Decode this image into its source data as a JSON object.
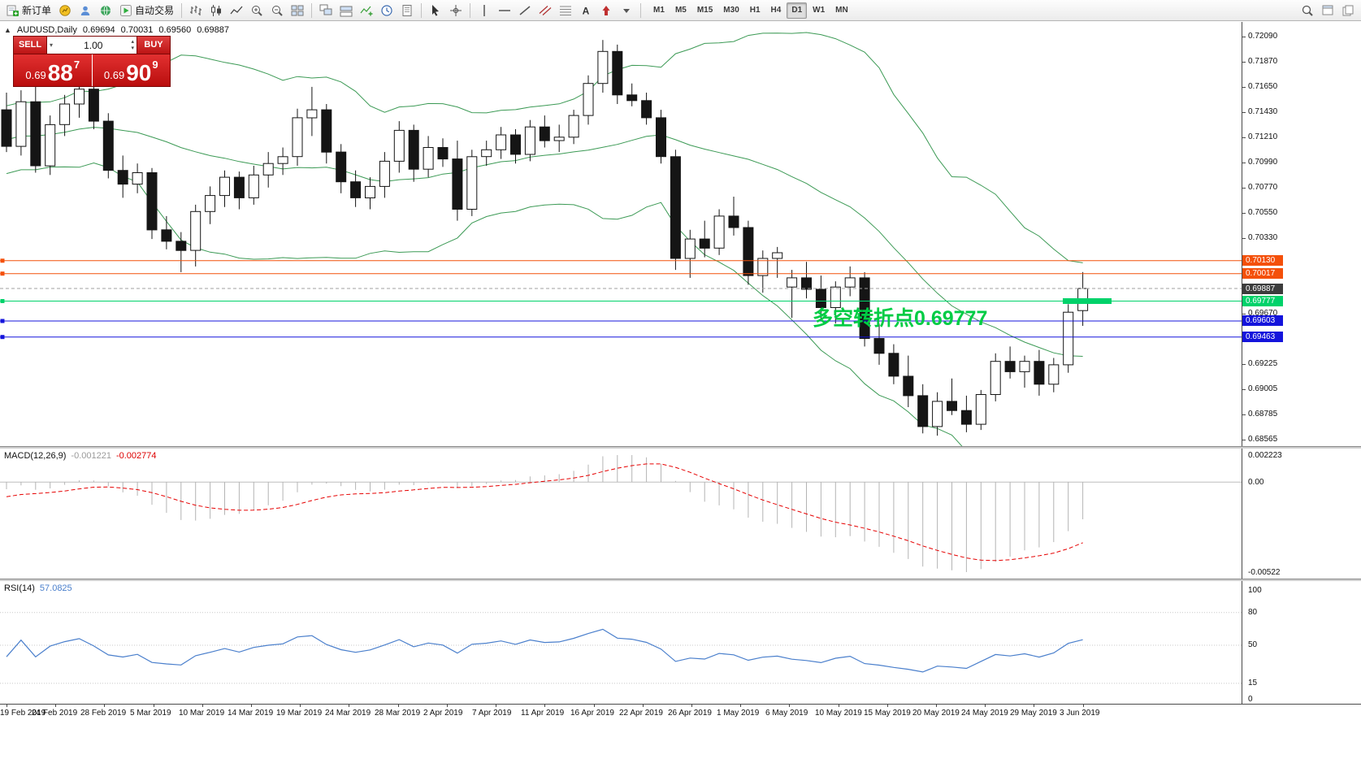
{
  "toolbar": {
    "buttons": [
      {
        "icon": "new-order-icon",
        "label": "新订单",
        "name": "new-order-button"
      },
      {
        "icon": "chart-window-icon",
        "name": "new-chart-button"
      },
      {
        "icon": "profile-icon",
        "name": "profile-button"
      },
      {
        "icon": "community-icon",
        "name": "community-button"
      },
      {
        "icon": "auto-trading-icon",
        "label": "自动交易",
        "name": "auto-trading-button"
      },
      {
        "sep": true
      },
      {
        "icon": "bar-chart-icon",
        "name": "bar-chart-button"
      },
      {
        "icon": "candlestick-chart-icon",
        "name": "candlestick-chart-button"
      },
      {
        "icon": "line-chart-icon",
        "name": "line-chart-button"
      },
      {
        "icon": "zoom-in-icon",
        "name": "zoom-in-button"
      },
      {
        "icon": "zoom-out-icon",
        "name": "zoom-out-button"
      },
      {
        "icon": "tile-windows-icon",
        "name": "tile-windows-button"
      },
      {
        "sep": true
      },
      {
        "icon": "arrange-windows-icon",
        "name": "arrange-windows-button"
      },
      {
        "icon": "cascade-windows-icon",
        "name": "cascade-windows-button"
      },
      {
        "icon": "indicators-icon",
        "name": "indicators-button"
      },
      {
        "icon": "periods-icon",
        "name": "periods-button"
      },
      {
        "icon": "templates-icon",
        "name": "templates-button"
      },
      {
        "sep": true
      },
      {
        "icon": "cursor-icon",
        "name": "cursor-button"
      },
      {
        "icon": "crosshair-icon",
        "name": "crosshair-button"
      },
      {
        "sep": true
      },
      {
        "icon": "vertical-line-icon",
        "name": "vertical-line-button"
      },
      {
        "icon": "horizontal-line-icon",
        "name": "horizontal-line-button"
      },
      {
        "icon": "trendline-icon",
        "name": "trendline-button"
      },
      {
        "icon": "channel-icon",
        "name": "equidistant-channel-button"
      },
      {
        "icon": "fibonacci-icon",
        "name": "fibonacci-button"
      },
      {
        "icon": "text-icon",
        "name": "text-button"
      },
      {
        "icon": "arrow-marker-icon",
        "name": "arrow-marker-button"
      },
      {
        "icon": "dropdown-icon",
        "name": "shapes-dropdown"
      },
      {
        "sep": true
      }
    ],
    "timeframes": [
      {
        "label": "M1"
      },
      {
        "label": "M5"
      },
      {
        "label": "M15"
      },
      {
        "label": "M30"
      },
      {
        "label": "H1"
      },
      {
        "label": "H4"
      },
      {
        "label": "D1",
        "active": true
      },
      {
        "label": "W1"
      },
      {
        "label": "MN"
      }
    ],
    "right_buttons": [
      {
        "icon": "search-icon",
        "name": "search-button"
      },
      {
        "icon": "new-window-icon",
        "name": "new-window-button"
      },
      {
        "icon": "pages-icon",
        "name": "pages-button"
      }
    ]
  },
  "window": {
    "symbol_title": "AUDUSD,Daily",
    "ohlc": {
      "open": "0.69694",
      "high": "0.70031",
      "low": "0.69560",
      "close": "0.69887"
    }
  },
  "trade_panel": {
    "sell_label": "SELL",
    "buy_label": "BUY",
    "volume": "1.00",
    "sell_price": {
      "prefix": "0.69",
      "big": "88",
      "sup": "7"
    },
    "buy_price": {
      "prefix": "0.69",
      "big": "90",
      "sup": "9"
    }
  },
  "annotation": {
    "text": "多空转折点0.69777",
    "color": "#00cc44"
  },
  "indicators": {
    "macd": {
      "title": "MACD(12,26,9)",
      "main_value": "-0.001221",
      "signal_value": "-0.002774",
      "scale": {
        "top": "0.002223",
        "zero": "0.00",
        "bottom": "-0.00522"
      },
      "colors": {
        "histogram": "#b4b4b4",
        "signal": "#e60000"
      }
    },
    "rsi": {
      "title": "RSI(14)",
      "value": "57.0825",
      "levels": [
        100,
        80,
        50,
        15,
        0
      ],
      "color": "#4a7fcc"
    }
  },
  "chart_data": {
    "type": "candlestick",
    "symbol": "AUDUSD",
    "timeframe": "Daily",
    "ohlc": [
      [
        0.7145,
        0.716,
        0.7108,
        0.7113
      ],
      [
        0.7113,
        0.7162,
        0.7105,
        0.7152
      ],
      [
        0.7152,
        0.7168,
        0.709,
        0.7096
      ],
      [
        0.7096,
        0.714,
        0.7088,
        0.7132
      ],
      [
        0.7132,
        0.7158,
        0.7122,
        0.715
      ],
      [
        0.715,
        0.7168,
        0.7138,
        0.7163
      ],
      [
        0.7163,
        0.717,
        0.7128,
        0.7135
      ],
      [
        0.7135,
        0.7142,
        0.7085,
        0.7092
      ],
      [
        0.7092,
        0.7105,
        0.7068,
        0.708
      ],
      [
        0.708,
        0.7098,
        0.7072,
        0.709
      ],
      [
        0.709,
        0.7094,
        0.7032,
        0.704
      ],
      [
        0.704,
        0.7052,
        0.7023,
        0.703
      ],
      [
        0.703,
        0.7038,
        0.7003,
        0.7022
      ],
      [
        0.7022,
        0.7062,
        0.7008,
        0.7056
      ],
      [
        0.7056,
        0.7078,
        0.7045,
        0.707
      ],
      [
        0.707,
        0.7092,
        0.706,
        0.7086
      ],
      [
        0.7086,
        0.7091,
        0.7058,
        0.7068
      ],
      [
        0.7068,
        0.7096,
        0.7062,
        0.7088
      ],
      [
        0.7088,
        0.7108,
        0.7077,
        0.7098
      ],
      [
        0.7098,
        0.7112,
        0.7088,
        0.7104
      ],
      [
        0.7104,
        0.7146,
        0.7096,
        0.7138
      ],
      [
        0.7138,
        0.7165,
        0.7122,
        0.7145
      ],
      [
        0.7145,
        0.715,
        0.7098,
        0.7108
      ],
      [
        0.7108,
        0.7115,
        0.7072,
        0.7082
      ],
      [
        0.7082,
        0.7092,
        0.706,
        0.7068
      ],
      [
        0.7068,
        0.7086,
        0.7058,
        0.7078
      ],
      [
        0.7078,
        0.7108,
        0.7068,
        0.71
      ],
      [
        0.71,
        0.7135,
        0.709,
        0.7127
      ],
      [
        0.7127,
        0.7132,
        0.7082,
        0.7093
      ],
      [
        0.7093,
        0.7122,
        0.7086,
        0.7112
      ],
      [
        0.7112,
        0.712,
        0.7095,
        0.7102
      ],
      [
        0.7102,
        0.7118,
        0.7048,
        0.7058
      ],
      [
        0.7058,
        0.711,
        0.7052,
        0.7104
      ],
      [
        0.7104,
        0.7118,
        0.7096,
        0.711
      ],
      [
        0.711,
        0.713,
        0.7102,
        0.7123
      ],
      [
        0.7123,
        0.7128,
        0.7098,
        0.7106
      ],
      [
        0.7106,
        0.7136,
        0.71,
        0.713
      ],
      [
        0.713,
        0.714,
        0.7112,
        0.7118
      ],
      [
        0.7118,
        0.7132,
        0.7108,
        0.7121
      ],
      [
        0.7121,
        0.7145,
        0.7115,
        0.714
      ],
      [
        0.714,
        0.7175,
        0.7132,
        0.7168
      ],
      [
        0.7168,
        0.7206,
        0.716,
        0.7196
      ],
      [
        0.7196,
        0.7202,
        0.715,
        0.7158
      ],
      [
        0.7158,
        0.7168,
        0.7148,
        0.7153
      ],
      [
        0.7153,
        0.716,
        0.7132,
        0.7138
      ],
      [
        0.7138,
        0.7145,
        0.7098,
        0.7104
      ],
      [
        0.7104,
        0.711,
        0.7005,
        0.7015
      ],
      [
        0.7015,
        0.704,
        0.6998,
        0.7032
      ],
      [
        0.7032,
        0.7048,
        0.7016,
        0.7024
      ],
      [
        0.7024,
        0.7058,
        0.7018,
        0.7052
      ],
      [
        0.7052,
        0.7069,
        0.7035,
        0.7042
      ],
      [
        0.7042,
        0.7048,
        0.6992,
        0.7
      ],
      [
        0.7,
        0.7022,
        0.6985,
        0.7015
      ],
      [
        0.7015,
        0.7025,
        0.6998,
        0.702
      ],
      [
        0.699,
        0.7005,
        0.6963,
        0.6998
      ],
      [
        0.6998,
        0.7012,
        0.698,
        0.6988
      ],
      [
        0.6988,
        0.7,
        0.6962,
        0.6972
      ],
      [
        0.6972,
        0.6995,
        0.6958,
        0.699
      ],
      [
        0.699,
        0.7008,
        0.6982,
        0.6998
      ],
      [
        0.6998,
        0.7003,
        0.6938,
        0.6945
      ],
      [
        0.6945,
        0.6958,
        0.6922,
        0.6932
      ],
      [
        0.6932,
        0.694,
        0.6905,
        0.6912
      ],
      [
        0.6912,
        0.693,
        0.6885,
        0.6895
      ],
      [
        0.6895,
        0.6905,
        0.6862,
        0.6868
      ],
      [
        0.6868,
        0.6898,
        0.686,
        0.689
      ],
      [
        0.689,
        0.691,
        0.6878,
        0.6882
      ],
      [
        0.6882,
        0.6895,
        0.6863,
        0.687
      ],
      [
        0.687,
        0.69,
        0.6865,
        0.6896
      ],
      [
        0.6896,
        0.6932,
        0.689,
        0.6925
      ],
      [
        0.6925,
        0.6938,
        0.691,
        0.6916
      ],
      [
        0.6916,
        0.693,
        0.6902,
        0.6925
      ],
      [
        0.6925,
        0.6935,
        0.6895,
        0.6905
      ],
      [
        0.6905,
        0.6928,
        0.6898,
        0.6922
      ],
      [
        0.6922,
        0.6975,
        0.6915,
        0.6968
      ],
      [
        0.69694,
        0.70031,
        0.6956,
        0.69887
      ]
    ],
    "x_labels": [
      "19 Feb 2019",
      "24 Feb 2019",
      "28 Feb 2019",
      "5 Mar 2019",
      "10 Mar 2019",
      "14 Mar 2019",
      "19 Mar 2019",
      "24 Mar 2019",
      "28 Mar 2019",
      "2 Apr 2019",
      "7 Apr 2019",
      "11 Apr 2019",
      "16 Apr 2019",
      "22 Apr 2019",
      "26 Apr 2019",
      "1 May 2019",
      "6 May 2019",
      "10 May 2019",
      "15 May 2019",
      "20 May 2019",
      "24 May 2019",
      "29 May 2019",
      "3 Jun 2019"
    ],
    "y_ticks": [
      {
        "label": "0.72090",
        "price": 0.7209
      },
      {
        "label": "0.71870",
        "price": 0.7187
      },
      {
        "label": "0.71650",
        "price": 0.7165
      },
      {
        "label": "0.71430",
        "price": 0.7143
      },
      {
        "label": "0.71210",
        "price": 0.7121
      },
      {
        "label": "0.70990",
        "price": 0.7099
      },
      {
        "label": "0.70770",
        "price": 0.7077
      },
      {
        "label": "0.70550",
        "price": 0.7055
      },
      {
        "label": "0.70330",
        "price": 0.7033
      },
      {
        "label": "0.69670",
        "price": 0.6967
      },
      {
        "label": "0.69225",
        "price": 0.69225
      },
      {
        "label": "0.69005",
        "price": 0.69005
      },
      {
        "label": "0.68785",
        "price": 0.68785
      },
      {
        "label": "0.68565",
        "price": 0.68565
      }
    ],
    "bollinger": {
      "period": 20,
      "deviation": 2,
      "color": "#3c9a55"
    },
    "hlines": [
      {
        "price": 0.7013,
        "label": "0.70130",
        "color": "#f4500a"
      },
      {
        "price": 0.70017,
        "label": "0.70017",
        "color": "#f4500a"
      },
      {
        "price": 0.69777,
        "label": "0.69777",
        "color": "#00d26a",
        "thick_from_x": 1308,
        "thick_to_x": 1368
      },
      {
        "price": 0.69603,
        "label": "0.69603",
        "color": "#1414dc"
      },
      {
        "price": 0.69463,
        "label": "0.69463",
        "color": "#1414dc"
      }
    ],
    "current_price": {
      "price": 0.69887,
      "label": "0.69887",
      "tag_color": "#3c3c3c"
    }
  }
}
